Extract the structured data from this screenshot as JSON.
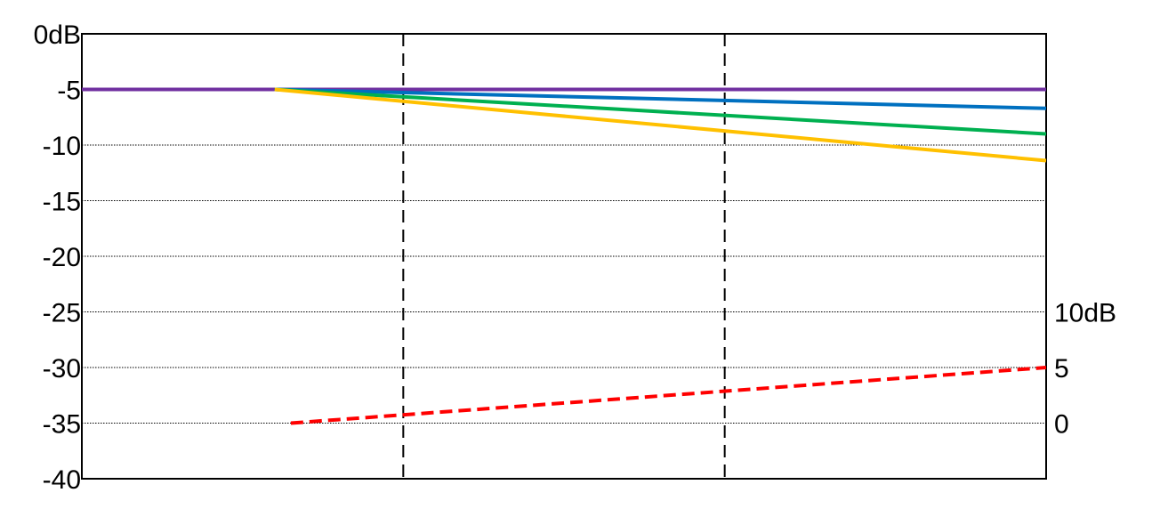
{
  "chart_data": {
    "type": "line",
    "title": "",
    "xlabel": "",
    "ylabel": "",
    "y_axis_left": {
      "range": [
        -40,
        0
      ],
      "tick_values": [
        0,
        -5,
        -10,
        -15,
        -20,
        -25,
        -30,
        -35,
        -40
      ],
      "tick_labels": [
        "0dB",
        "-5",
        "-10",
        "-15",
        "-20",
        "-25",
        "-30",
        "-35",
        "-40"
      ],
      "horizontal_grid": "dotted, every 5 dB"
    },
    "y_axis_right": {
      "tick_labels": [
        "10dB",
        "5",
        "0"
      ],
      "tick_positions_on_left_scale": [
        -25,
        -30,
        -35
      ]
    },
    "x_axis": {
      "range": [
        0,
        3
      ],
      "vertical_grid": "dashed",
      "gridline_positions": [
        1,
        2
      ],
      "tick_labels": []
    },
    "series": [
      {
        "color": "#7030a0",
        "style": "solid",
        "axis": "left",
        "x": [
          0,
          3
        ],
        "y": [
          -5,
          -5
        ]
      },
      {
        "color": "#0070c0",
        "style": "solid",
        "axis": "left",
        "x": [
          0.6,
          3
        ],
        "y": [
          -5,
          -6.7
        ]
      },
      {
        "color": "#00b050",
        "style": "solid",
        "axis": "left",
        "x": [
          0.6,
          3
        ],
        "y": [
          -5,
          -9
        ]
      },
      {
        "color": "#ffc000",
        "style": "solid",
        "axis": "left",
        "x": [
          0.6,
          3
        ],
        "y": [
          -5,
          -11.4
        ]
      },
      {
        "color": "#ff0000",
        "style": "dashed",
        "axis": "right",
        "x": [
          0.65,
          3
        ],
        "y": [
          0,
          5
        ]
      }
    ]
  }
}
